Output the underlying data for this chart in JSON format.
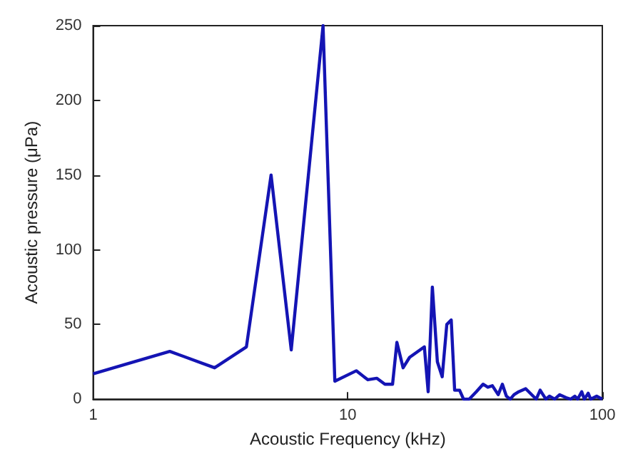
{
  "chart_data": {
    "type": "line",
    "xlabel": "Acoustic Frequency (kHz)",
    "ylabel": "Acoustic pressure (μPa)",
    "log": "x",
    "xlim": [
      1,
      100
    ],
    "xticks": [
      1,
      10,
      100
    ],
    "ylim": [
      0,
      250
    ],
    "yticks": [
      0,
      50,
      100,
      150,
      200,
      250
    ],
    "grid": false,
    "marker": "none",
    "line_style": "solid",
    "x": [
      1,
      2,
      3,
      4,
      5,
      6,
      8,
      8.9,
      10.8,
      12,
      13,
      14,
      15,
      15.6,
      16.5,
      17.5,
      20,
      20.7,
      21.5,
      22.5,
      23.5,
      24.5,
      25.5,
      26.3,
      27.5,
      28.5,
      30,
      32,
      34,
      35.5,
      37,
      39,
      40.5,
      42,
      43.5,
      45,
      47,
      50,
      55,
      57,
      60,
      62,
      65,
      68,
      72,
      75,
      78,
      80,
      83,
      85,
      88,
      90,
      95,
      100
    ],
    "series": [
      {
        "color": "#1414b4",
        "values": [
          17,
          32,
          21,
          35,
          150,
          33,
          250,
          12,
          19,
          13,
          14,
          10,
          10,
          38,
          21,
          28,
          35,
          5,
          75,
          25,
          15,
          50,
          53,
          6,
          6,
          0,
          0,
          5,
          10,
          8,
          9,
          3,
          10,
          2,
          0,
          3,
          5,
          7,
          0,
          6,
          0,
          2,
          0,
          3,
          1,
          0,
          2,
          0,
          5,
          0,
          4,
          0,
          2,
          0
        ]
      }
    ]
  }
}
